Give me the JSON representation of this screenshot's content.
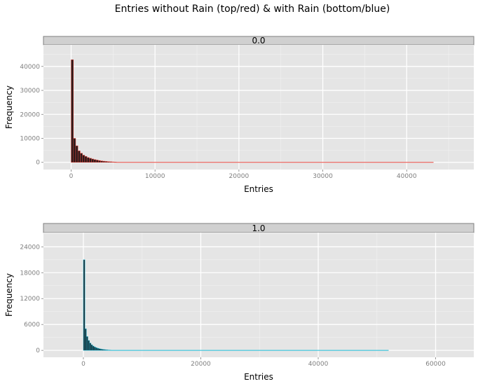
{
  "title": "Entries without Rain (top/red) & with Rain (bottom/blue)",
  "chart_data": [
    {
      "type": "bar",
      "facet_label": "0.0",
      "xlabel": "Entries",
      "ylabel": "Frequency",
      "xlim": [
        -3300,
        48000
      ],
      "ylim": [
        -3000,
        49000
      ],
      "x_ticks": [
        0,
        10000,
        20000,
        30000,
        40000
      ],
      "x_tick_labels": [
        "0",
        "10000",
        "20000",
        "30000",
        "40000"
      ],
      "y_ticks": [
        0,
        10000,
        20000,
        30000,
        40000
      ],
      "y_tick_labels": [
        "0",
        "10000",
        "20000",
        "30000",
        "40000"
      ],
      "grid": true,
      "bin_width": 270,
      "bar_fill": "#2b1b1b",
      "bar_outline": "#e8453c",
      "x_end": 43200,
      "bins": [
        {
          "x": 0,
          "y": 42800
        },
        {
          "x": 270,
          "y": 10000
        },
        {
          "x": 540,
          "y": 6900
        },
        {
          "x": 810,
          "y": 4800
        },
        {
          "x": 1080,
          "y": 3800
        },
        {
          "x": 1350,
          "y": 3000
        },
        {
          "x": 1620,
          "y": 2500
        },
        {
          "x": 1890,
          "y": 2000
        },
        {
          "x": 2160,
          "y": 1700
        },
        {
          "x": 2430,
          "y": 1400
        },
        {
          "x": 2700,
          "y": 1150
        },
        {
          "x": 2970,
          "y": 950
        },
        {
          "x": 3240,
          "y": 750
        },
        {
          "x": 3510,
          "y": 600
        },
        {
          "x": 3780,
          "y": 480
        },
        {
          "x": 4050,
          "y": 380
        },
        {
          "x": 4320,
          "y": 300
        },
        {
          "x": 4590,
          "y": 240
        },
        {
          "x": 4860,
          "y": 180
        },
        {
          "x": 5130,
          "y": 130
        }
      ]
    },
    {
      "type": "bar",
      "facet_label": "1.0",
      "xlabel": "Entries",
      "ylabel": "Frequency",
      "xlim": [
        -6800,
        66500
      ],
      "ylim": [
        -1600,
        27300
      ],
      "x_ticks": [
        0,
        20000,
        40000,
        60000
      ],
      "x_tick_labels": [
        "0",
        "20000",
        "40000",
        "60000"
      ],
      "y_ticks": [
        0,
        6000,
        12000,
        18000,
        24000
      ],
      "y_tick_labels": [
        "0",
        "6000",
        "12000",
        "18000",
        "24000"
      ],
      "grid": true,
      "bin_width": 260,
      "bar_fill": "#1b2b33",
      "bar_outline": "#17b8d4",
      "x_end": 52000,
      "bins": [
        {
          "x": 0,
          "y": 21000
        },
        {
          "x": 260,
          "y": 5000
        },
        {
          "x": 520,
          "y": 3200
        },
        {
          "x": 780,
          "y": 2300
        },
        {
          "x": 1040,
          "y": 1700
        },
        {
          "x": 1300,
          "y": 1300
        },
        {
          "x": 1560,
          "y": 1000
        },
        {
          "x": 1820,
          "y": 800
        },
        {
          "x": 2080,
          "y": 620
        },
        {
          "x": 2340,
          "y": 500
        },
        {
          "x": 2600,
          "y": 400
        },
        {
          "x": 2860,
          "y": 320
        },
        {
          "x": 3120,
          "y": 250
        },
        {
          "x": 3380,
          "y": 200
        },
        {
          "x": 3640,
          "y": 160
        },
        {
          "x": 3900,
          "y": 120
        },
        {
          "x": 4160,
          "y": 90
        },
        {
          "x": 4420,
          "y": 70
        }
      ]
    }
  ]
}
